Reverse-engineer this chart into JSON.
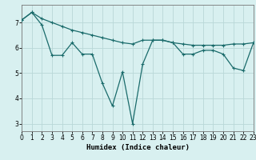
{
  "title": "",
  "xlabel": "Humidex (Indice chaleur)",
  "ylabel": "",
  "bg_color": "#d8f0f0",
  "line_color": "#1a6b6b",
  "grid_color": "#b8d8d8",
  "line1_x": [
    0,
    1,
    2,
    3,
    4,
    5,
    6,
    7,
    8,
    9,
    10,
    11,
    12,
    13,
    14,
    15,
    16,
    17,
    18,
    19,
    20,
    21,
    22,
    23
  ],
  "line1_y": [
    7.1,
    7.4,
    6.9,
    5.7,
    5.7,
    6.2,
    5.75,
    5.75,
    4.6,
    3.7,
    5.05,
    3.0,
    5.35,
    6.3,
    6.3,
    6.2,
    5.75,
    5.75,
    5.9,
    5.9,
    5.75,
    5.2,
    5.1,
    6.2
  ],
  "line2_x": [
    0,
    1,
    2,
    3,
    4,
    5,
    6,
    7,
    8,
    9,
    10,
    11,
    12,
    13,
    14,
    15,
    16,
    17,
    18,
    19,
    20,
    21,
    22,
    23
  ],
  "line2_y": [
    7.1,
    7.4,
    7.15,
    7.0,
    6.85,
    6.7,
    6.6,
    6.5,
    6.4,
    6.3,
    6.2,
    6.15,
    6.3,
    6.3,
    6.3,
    6.2,
    6.15,
    6.1,
    6.1,
    6.1,
    6.1,
    6.15,
    6.15,
    6.2
  ],
  "xlim": [
    0,
    23
  ],
  "ylim": [
    2.7,
    7.7
  ],
  "yticks": [
    3,
    4,
    5,
    6,
    7
  ],
  "xticks": [
    0,
    1,
    2,
    3,
    4,
    5,
    6,
    7,
    8,
    9,
    10,
    11,
    12,
    13,
    14,
    15,
    16,
    17,
    18,
    19,
    20,
    21,
    22,
    23
  ],
  "marker": "+",
  "markersize": 3.5,
  "linewidth": 0.9,
  "tick_fontsize": 5.5,
  "xlabel_fontsize": 6.5
}
